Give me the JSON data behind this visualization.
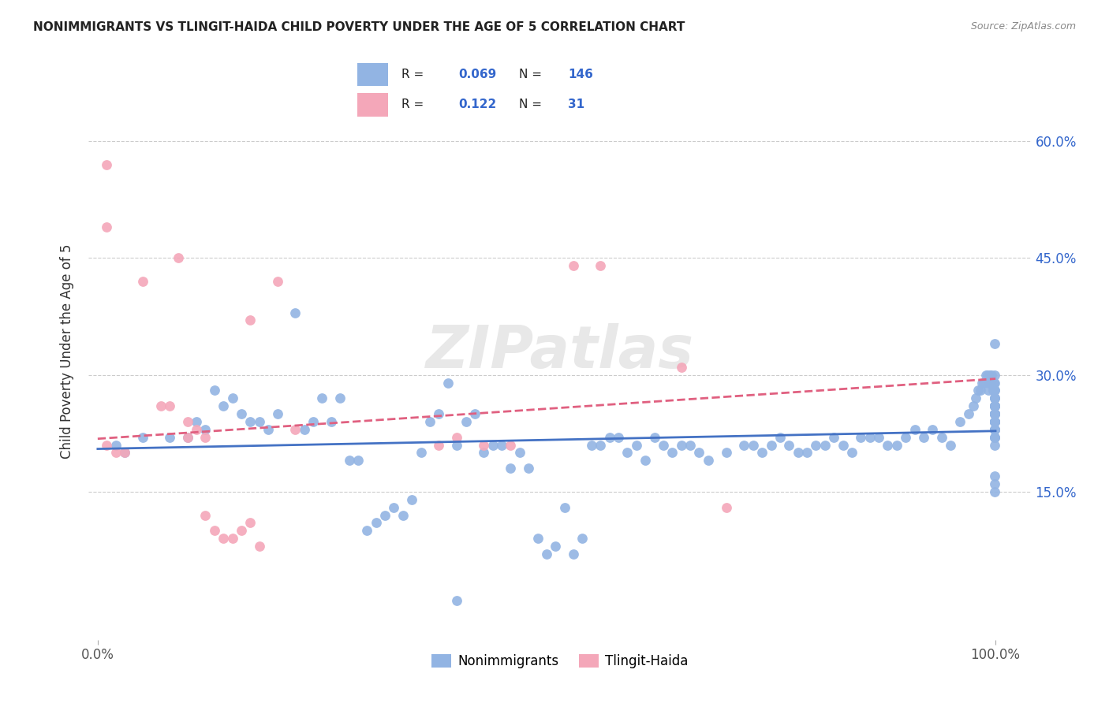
{
  "title": "NONIMMIGRANTS VS TLINGIT-HAIDA CHILD POVERTY UNDER THE AGE OF 5 CORRELATION CHART",
  "source": "Source: ZipAtlas.com",
  "ylabel": "Child Poverty Under the Age of 5",
  "y_ticks": [
    0.15,
    0.3,
    0.45,
    0.6
  ],
  "y_tick_labels": [
    "15.0%",
    "30.0%",
    "45.0%",
    "60.0%"
  ],
  "x_range": [
    -0.01,
    1.04
  ],
  "y_range": [
    -0.04,
    0.7
  ],
  "blue_color": "#92b4e3",
  "pink_color": "#f4a7b9",
  "blue_line_color": "#4472c4",
  "pink_line_color": "#e06080",
  "legend_blue_label": "Nonimmigrants",
  "legend_pink_label": "Tlingit-Haida",
  "R_blue": "0.069",
  "N_blue": "146",
  "R_pink": "0.122",
  "N_pink": "31",
  "watermark": "ZIPatlas",
  "blue_line_x": [
    0.0,
    1.0
  ],
  "blue_line_y": [
    0.205,
    0.228
  ],
  "pink_line_x": [
    0.0,
    1.0
  ],
  "pink_line_y": [
    0.218,
    0.295
  ],
  "blue_scatter_x": [
    0.02,
    0.03,
    0.05,
    0.08,
    0.1,
    0.11,
    0.12,
    0.13,
    0.14,
    0.15,
    0.16,
    0.17,
    0.18,
    0.19,
    0.2,
    0.22,
    0.23,
    0.24,
    0.25,
    0.26,
    0.27,
    0.28,
    0.29,
    0.3,
    0.31,
    0.32,
    0.33,
    0.34,
    0.35,
    0.36,
    0.37,
    0.38,
    0.39,
    0.4,
    0.41,
    0.42,
    0.43,
    0.44,
    0.45,
    0.46,
    0.47,
    0.48,
    0.49,
    0.5,
    0.51,
    0.52,
    0.53,
    0.54,
    0.55,
    0.56,
    0.57,
    0.58,
    0.59,
    0.6,
    0.61,
    0.62,
    0.63,
    0.64,
    0.65,
    0.66,
    0.67,
    0.68,
    0.7,
    0.72,
    0.73,
    0.74,
    0.75,
    0.76,
    0.77,
    0.78,
    0.79,
    0.8,
    0.81,
    0.82,
    0.83,
    0.84,
    0.85,
    0.86,
    0.87,
    0.88,
    0.89,
    0.9,
    0.91,
    0.92,
    0.93,
    0.94,
    0.95,
    0.96,
    0.97,
    0.975,
    0.978,
    0.981,
    0.983,
    0.985,
    0.987,
    0.989,
    0.991,
    0.992,
    0.993,
    0.994,
    0.995,
    0.996,
    0.997,
    0.998,
    0.999,
    0.999,
    0.999,
    0.999,
    0.999,
    0.999,
    0.999,
    0.999,
    0.999,
    0.999,
    0.999,
    0.999,
    0.999,
    0.999,
    0.999,
    0.999,
    0.999,
    0.999,
    0.999,
    0.999,
    0.999,
    0.999,
    0.999,
    0.999,
    0.999,
    0.999,
    0.999,
    0.999,
    0.999,
    0.999,
    0.999,
    0.999,
    0.999,
    0.999,
    0.999,
    0.999,
    0.999,
    0.999,
    0.999,
    0.999,
    0.999,
    0.4
  ],
  "blue_scatter_y": [
    0.21,
    0.2,
    0.22,
    0.22,
    0.22,
    0.24,
    0.23,
    0.28,
    0.26,
    0.27,
    0.25,
    0.24,
    0.24,
    0.23,
    0.25,
    0.38,
    0.23,
    0.24,
    0.27,
    0.24,
    0.27,
    0.19,
    0.19,
    0.1,
    0.11,
    0.12,
    0.13,
    0.12,
    0.14,
    0.2,
    0.24,
    0.25,
    0.29,
    0.21,
    0.24,
    0.25,
    0.2,
    0.21,
    0.21,
    0.18,
    0.2,
    0.18,
    0.09,
    0.07,
    0.08,
    0.13,
    0.07,
    0.09,
    0.21,
    0.21,
    0.22,
    0.22,
    0.2,
    0.21,
    0.19,
    0.22,
    0.21,
    0.2,
    0.21,
    0.21,
    0.2,
    0.19,
    0.2,
    0.21,
    0.21,
    0.2,
    0.21,
    0.22,
    0.21,
    0.2,
    0.2,
    0.21,
    0.21,
    0.22,
    0.21,
    0.2,
    0.22,
    0.22,
    0.22,
    0.21,
    0.21,
    0.22,
    0.23,
    0.22,
    0.23,
    0.22,
    0.21,
    0.24,
    0.25,
    0.26,
    0.27,
    0.28,
    0.28,
    0.29,
    0.29,
    0.3,
    0.3,
    0.28,
    0.29,
    0.3,
    0.29,
    0.3,
    0.28,
    0.29,
    0.24,
    0.25,
    0.27,
    0.28,
    0.29,
    0.24,
    0.26,
    0.28,
    0.3,
    0.15,
    0.17,
    0.16,
    0.22,
    0.21,
    0.23,
    0.25,
    0.24,
    0.26,
    0.25,
    0.26,
    0.34,
    0.27,
    0.25,
    0.26,
    0.23,
    0.24,
    0.25,
    0.23,
    0.24,
    0.24,
    0.25,
    0.22,
    0.23,
    0.24,
    0.22,
    0.23,
    0.25,
    0.26,
    0.27,
    0.26,
    0.25,
    0.01
  ],
  "pink_scatter_x": [
    0.01,
    0.01,
    0.02,
    0.03,
    0.05,
    0.07,
    0.08,
    0.09,
    0.1,
    0.1,
    0.11,
    0.12,
    0.12,
    0.13,
    0.14,
    0.15,
    0.16,
    0.17,
    0.17,
    0.18,
    0.2,
    0.22,
    0.38,
    0.4,
    0.43,
    0.46,
    0.53,
    0.56,
    0.65,
    0.7,
    0.01
  ],
  "pink_scatter_y": [
    0.57,
    0.21,
    0.2,
    0.2,
    0.42,
    0.26,
    0.26,
    0.45,
    0.24,
    0.22,
    0.23,
    0.12,
    0.22,
    0.1,
    0.09,
    0.09,
    0.1,
    0.37,
    0.11,
    0.08,
    0.42,
    0.23,
    0.21,
    0.22,
    0.21,
    0.21,
    0.44,
    0.44,
    0.31,
    0.13,
    0.49
  ]
}
